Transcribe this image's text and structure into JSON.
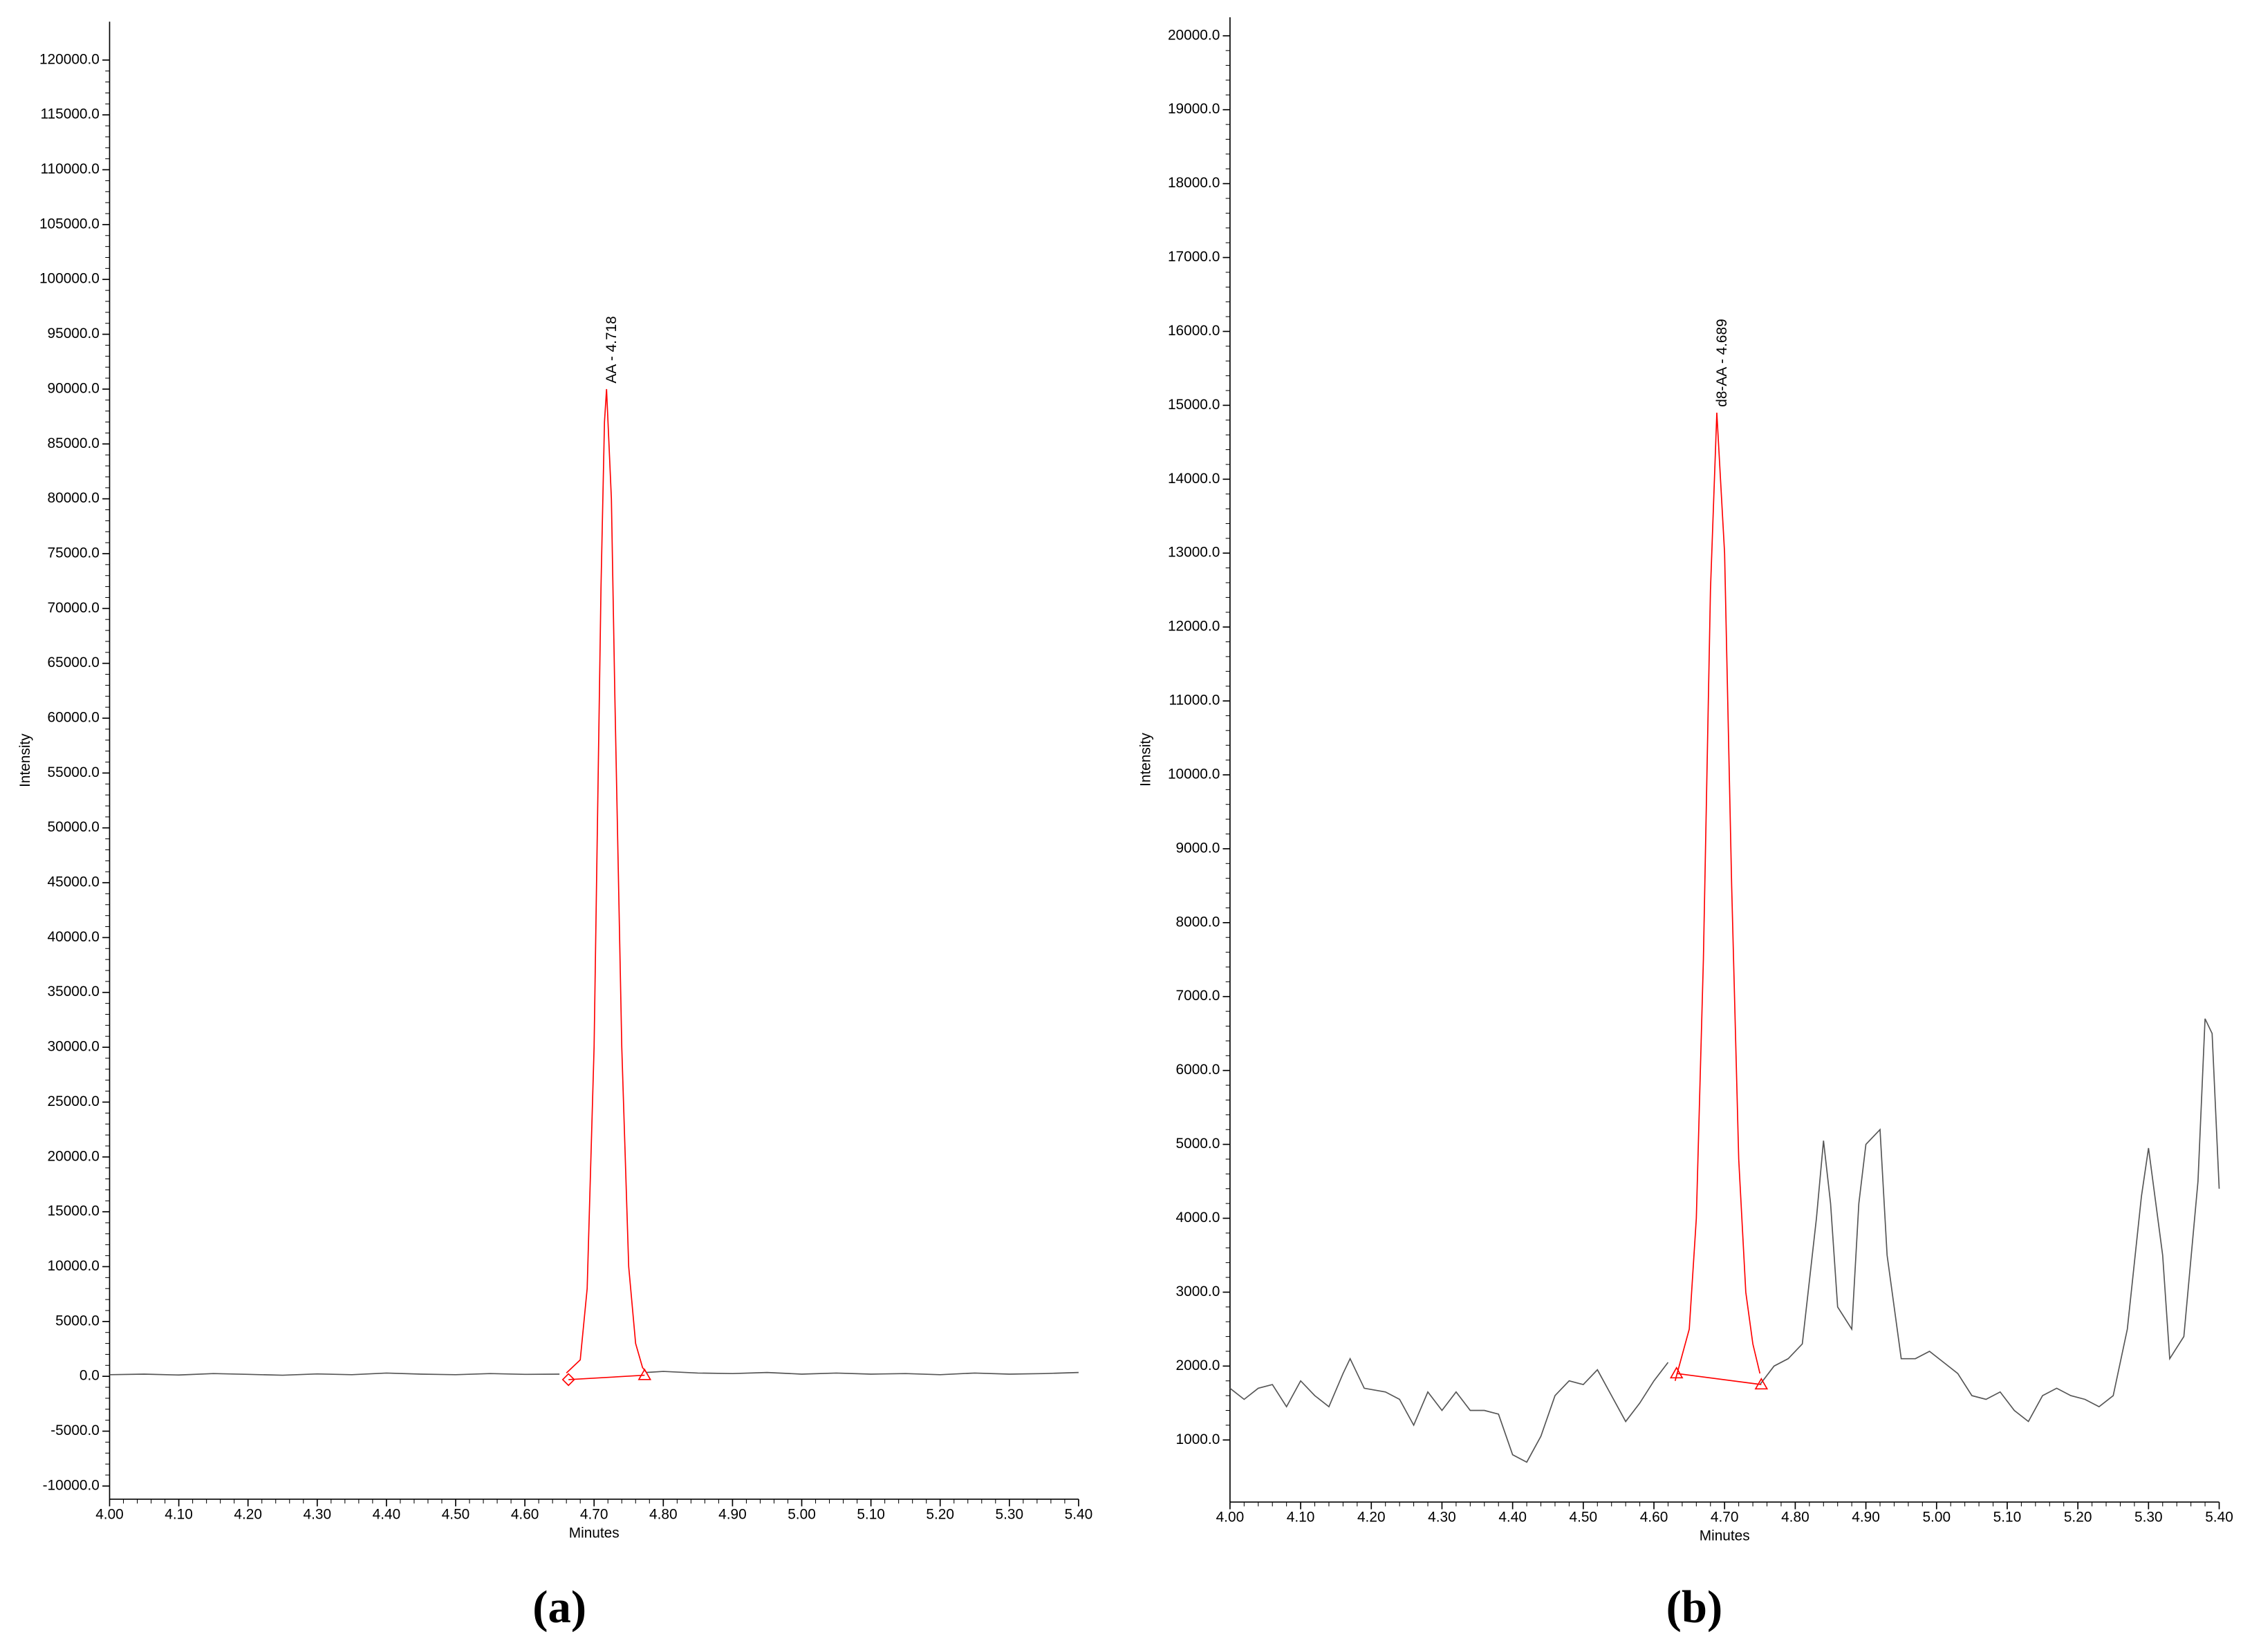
{
  "chart_data": [
    {
      "type": "line",
      "caption": "(a)",
      "x_label": "Minutes",
      "y_label": "Intensity",
      "annotation": "AA - 4.718",
      "xlim": [
        4.0,
        5.4
      ],
      "ylim": [
        -11200,
        123500
      ],
      "xticks": [
        {
          "value": 4.0,
          "label": "4.00"
        },
        {
          "value": 4.1,
          "label": "4.10"
        },
        {
          "value": 4.2,
          "label": "4.20"
        },
        {
          "value": 4.3,
          "label": "4.30"
        },
        {
          "value": 4.4,
          "label": "4.40"
        },
        {
          "value": 4.5,
          "label": "4.50"
        },
        {
          "value": 4.6,
          "label": "4.60"
        },
        {
          "value": 4.7,
          "label": "4.70"
        },
        {
          "value": 4.8,
          "label": "4.80"
        },
        {
          "value": 4.9,
          "label": "4.90"
        },
        {
          "value": 5.0,
          "label": "5.00"
        },
        {
          "value": 5.1,
          "label": "5.10"
        },
        {
          "value": 5.2,
          "label": "5.20"
        },
        {
          "value": 5.3,
          "label": "5.30"
        },
        {
          "value": 5.4,
          "label": "5.40"
        }
      ],
      "yticks": [
        {
          "value": -10000,
          "label": "-10000.0"
        },
        {
          "value": -5000,
          "label": "-5000.0"
        },
        {
          "value": 0,
          "label": "0.0"
        },
        {
          "value": 5000,
          "label": "5000.0"
        },
        {
          "value": 10000,
          "label": "10000.0"
        },
        {
          "value": 15000,
          "label": "15000.0"
        },
        {
          "value": 20000,
          "label": "20000.0"
        },
        {
          "value": 25000,
          "label": "25000.0"
        },
        {
          "value": 30000,
          "label": "30000.0"
        },
        {
          "value": 35000,
          "label": "35000.0"
        },
        {
          "value": 40000,
          "label": "40000.0"
        },
        {
          "value": 45000,
          "label": "45000.0"
        },
        {
          "value": 50000,
          "label": "50000.0"
        },
        {
          "value": 55000,
          "label": "55000.0"
        },
        {
          "value": 60000,
          "label": "60000.0"
        },
        {
          "value": 65000,
          "label": "65000.0"
        },
        {
          "value": 70000,
          "label": "70000.0"
        },
        {
          "value": 75000,
          "label": "75000.0"
        },
        {
          "value": 80000,
          "label": "80000.0"
        },
        {
          "value": 85000,
          "label": "85000.0"
        },
        {
          "value": 90000,
          "label": "90000.0"
        },
        {
          "value": 95000,
          "label": "95000.0"
        },
        {
          "value": 100000,
          "label": "100000.0"
        },
        {
          "value": 105000,
          "label": "105000.0"
        },
        {
          "value": 110000,
          "label": "110000.0"
        },
        {
          "value": 115000,
          "label": "115000.0"
        },
        {
          "value": 120000,
          "label": "120000.0"
        }
      ],
      "series": [
        {
          "color": "#555555",
          "x": [
            4.0,
            4.05,
            4.1,
            4.15,
            4.2,
            4.25,
            4.3,
            4.35,
            4.4,
            4.45,
            4.5,
            4.55,
            4.6,
            4.65,
            4.66,
            4.775,
            4.8,
            4.85,
            4.9,
            4.95,
            5.0,
            5.05,
            5.1,
            5.15,
            5.2,
            5.25,
            5.3,
            5.35,
            5.4
          ],
          "values": [
            150,
            200,
            120,
            250,
            180,
            100,
            220,
            150,
            300,
            200,
            150,
            250,
            180,
            200,
            null,
            350,
            450,
            300,
            250,
            350,
            200,
            300,
            200,
            250,
            150,
            300,
            200,
            250,
            350
          ]
        },
        {
          "color": "#ff0000",
          "x": [
            4.66,
            4.68,
            4.69,
            4.7,
            4.71,
            4.715,
            4.718,
            4.725,
            4.73,
            4.74,
            4.75,
            4.76,
            4.77,
            4.775
          ],
          "values": [
            300,
            1500,
            8000,
            30000,
            72000,
            87000,
            90000,
            80000,
            62000,
            30000,
            10000,
            3000,
            800,
            400
          ]
        },
        {
          "color": "#ff0000",
          "markers": [
            "diamond",
            "triangle"
          ],
          "x": [
            4.663,
            4.773
          ],
          "values": [
            -300,
            100
          ]
        }
      ]
    },
    {
      "type": "line",
      "caption": "(b)",
      "x_label": "Minutes",
      "y_label": "Intensity",
      "annotation": "d8-AA - 4.689",
      "xlim": [
        4.0,
        5.4
      ],
      "ylim": [
        160,
        20250
      ],
      "xticks": [
        {
          "value": 4.0,
          "label": "4.00"
        },
        {
          "value": 4.1,
          "label": "4.10"
        },
        {
          "value": 4.2,
          "label": "4.20"
        },
        {
          "value": 4.3,
          "label": "4.30"
        },
        {
          "value": 4.4,
          "label": "4.40"
        },
        {
          "value": 4.5,
          "label": "4.50"
        },
        {
          "value": 4.6,
          "label": "4.60"
        },
        {
          "value": 4.7,
          "label": "4.70"
        },
        {
          "value": 4.8,
          "label": "4.80"
        },
        {
          "value": 4.9,
          "label": "4.90"
        },
        {
          "value": 5.0,
          "label": "5.00"
        },
        {
          "value": 5.1,
          "label": "5.10"
        },
        {
          "value": 5.2,
          "label": "5.20"
        },
        {
          "value": 5.3,
          "label": "5.30"
        },
        {
          "value": 5.4,
          "label": "5.40"
        }
      ],
      "yticks": [
        {
          "value": 1000,
          "label": "1000.0"
        },
        {
          "value": 2000,
          "label": "2000.0"
        },
        {
          "value": 3000,
          "label": "3000.0"
        },
        {
          "value": 4000,
          "label": "4000.0"
        },
        {
          "value": 5000,
          "label": "5000.0"
        },
        {
          "value": 6000,
          "label": "6000.0"
        },
        {
          "value": 7000,
          "label": "7000.0"
        },
        {
          "value": 8000,
          "label": "8000.0"
        },
        {
          "value": 9000,
          "label": "9000.0"
        },
        {
          "value": 10000,
          "label": "10000.0"
        },
        {
          "value": 11000,
          "label": "11000.0"
        },
        {
          "value": 12000,
          "label": "12000.0"
        },
        {
          "value": 13000,
          "label": "13000.0"
        },
        {
          "value": 14000,
          "label": "14000.0"
        },
        {
          "value": 15000,
          "label": "15000.0"
        },
        {
          "value": 16000,
          "label": "16000.0"
        },
        {
          "value": 17000,
          "label": "17000.0"
        },
        {
          "value": 18000,
          "label": "18000.0"
        },
        {
          "value": 19000,
          "label": "19000.0"
        },
        {
          "value": 20000,
          "label": "20000.0"
        }
      ],
      "series": [
        {
          "color": "#555555",
          "x": [
            4.0,
            4.02,
            4.04,
            4.06,
            4.08,
            4.1,
            4.12,
            4.14,
            4.16,
            4.17,
            4.19,
            4.22,
            4.24,
            4.26,
            4.28,
            4.3,
            4.32,
            4.34,
            4.36,
            4.38,
            4.4,
            4.42,
            4.44,
            4.46,
            4.48,
            4.5,
            4.52,
            4.54,
            4.56,
            4.58,
            4.6,
            4.62,
            4.69,
            4.75,
            4.77,
            4.79,
            4.81,
            4.83,
            4.84,
            4.85,
            4.86,
            4.88,
            4.89,
            4.9,
            4.92,
            4.93,
            4.95,
            4.97,
            4.99,
            5.01,
            5.03,
            5.05,
            5.07,
            5.09,
            5.11,
            5.13,
            5.15,
            5.17,
            5.19,
            5.21,
            5.23,
            5.25,
            5.27,
            5.29,
            5.3,
            5.32,
            5.33,
            5.35,
            5.37,
            5.38,
            5.39,
            5.4
          ],
          "values": [
            1700,
            1550,
            1700,
            1750,
            1450,
            1800,
            1600,
            1450,
            1900,
            2100,
            1700,
            1650,
            1550,
            1200,
            1650,
            1400,
            1650,
            1400,
            1400,
            1350,
            800,
            700,
            1050,
            1600,
            1800,
            1750,
            1950,
            1600,
            1250,
            1500,
            1800,
            2050,
            null,
            1750,
            2000,
            2100,
            2300,
            4000,
            5050,
            4200,
            2800,
            2500,
            4200,
            5000,
            5200,
            3500,
            2100,
            2100,
            2200,
            2050,
            1900,
            1600,
            1550,
            1650,
            1400,
            1250,
            1600,
            1700,
            1600,
            1550,
            1450,
            1600,
            2500,
            4300,
            4950,
            3500,
            2100,
            2400,
            4500,
            6700,
            6500,
            4400
          ]
        },
        {
          "color": "#ff0000",
          "x": [
            4.63,
            4.65,
            4.66,
            4.67,
            4.68,
            4.689,
            4.7,
            4.71,
            4.72,
            4.73,
            4.74,
            4.75
          ],
          "values": [
            1800,
            2500,
            4000,
            7500,
            12500,
            14900,
            13000,
            8500,
            4800,
            3000,
            2300,
            1900
          ]
        },
        {
          "color": "#ff0000",
          "markers": [
            "triangle",
            "triangle"
          ],
          "x": [
            4.632,
            4.752
          ],
          "values": [
            1900,
            1750
          ]
        }
      ]
    }
  ]
}
